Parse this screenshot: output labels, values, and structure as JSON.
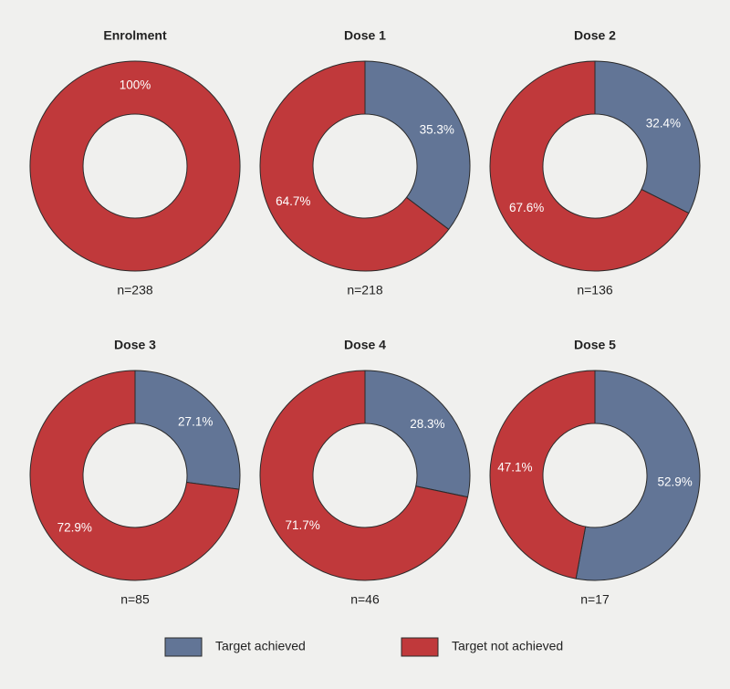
{
  "legend": {
    "labels": [
      "Target achieved",
      "Target not achieved"
    ],
    "colors": [
      "#627596",
      "#c0393b"
    ]
  },
  "chart_data": [
    {
      "type": "pie",
      "title": "Enrolment",
      "values": [
        0,
        100
      ],
      "value_labels": [
        null,
        "100%"
      ],
      "note": "n=238"
    },
    {
      "type": "pie",
      "title": "Dose 1",
      "values": [
        35.3,
        64.7
      ],
      "value_labels": [
        "35.3%",
        "64.7%"
      ],
      "note": "n=218"
    },
    {
      "type": "pie",
      "title": "Dose 2",
      "values": [
        32.4,
        67.6
      ],
      "value_labels": [
        "32.4%",
        "67.6%"
      ],
      "note": "n=136"
    },
    {
      "type": "pie",
      "title": "Dose 3",
      "values": [
        27.1,
        72.9
      ],
      "value_labels": [
        "27.1%",
        "72.9%"
      ],
      "note": "n=85"
    },
    {
      "type": "pie",
      "title": "Dose 4",
      "values": [
        28.3,
        71.7
      ],
      "value_labels": [
        "28.3%",
        "71.7%"
      ],
      "note": "n=46"
    },
    {
      "type": "pie",
      "title": "Dose 5",
      "values": [
        52.9,
        47.1
      ],
      "value_labels": [
        "52.9%",
        "47.1%"
      ],
      "note": "n=17"
    }
  ]
}
